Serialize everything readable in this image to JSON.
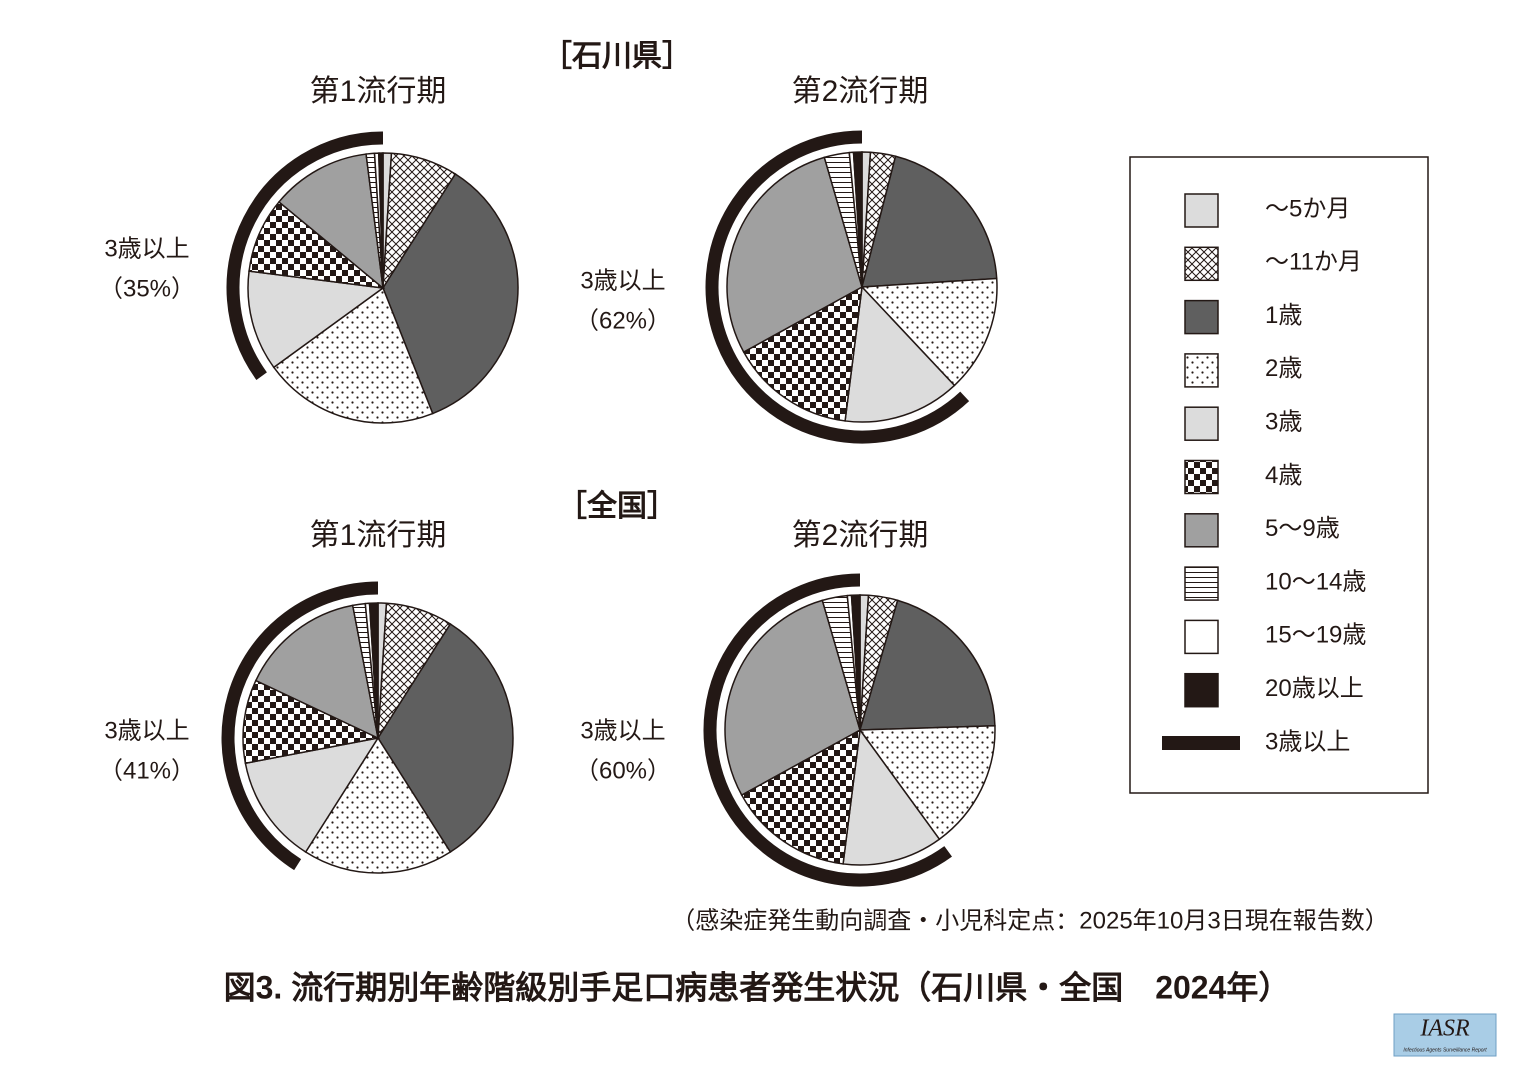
{
  "figure_title": "図3. 流行期別年齢階級別手足口病患者発生状況（石川県・全国　2024年）",
  "source": "（感染症発生動向調査・小児科定点：2025年10月3日現在報告数）",
  "logo": {
    "title": "IASR",
    "subtitle": "Infectious Agents Surveillance Report"
  },
  "chart_data": [
    {
      "type": "pie",
      "group": "［石川県］",
      "title": "第1流行期",
      "categories": [
        "～5か月",
        "～11か月",
        "1歳",
        "2歳",
        "3歳",
        "4歳",
        "5～9歳",
        "10～14歳",
        "15～19歳",
        "20歳以上"
      ],
      "values": [
        1,
        8,
        35,
        21,
        12,
        9,
        12,
        1,
        0.5,
        0.5
      ],
      "fills": [
        "#dcdcdc",
        "crosshatch",
        "#5f5f5f",
        "dots",
        "#dcdcdc",
        "checker",
        "#a0a0a0",
        "hstripes",
        "#ffffff",
        "#231815"
      ],
      "bracket": {
        "label": "3歳以上",
        "value": 35,
        "value_label": "（35%）",
        "color": "#231815"
      }
    },
    {
      "type": "pie",
      "title": "第2流行期",
      "categories": [
        "～5か月",
        "～11か月",
        "1歳",
        "2歳",
        "3歳",
        "4歳",
        "5～9歳",
        "10～14歳",
        "15～19歳",
        "20歳以上"
      ],
      "values": [
        1,
        3,
        20,
        14,
        14,
        15,
        28.5,
        3,
        0.5,
        1
      ],
      "fills": [
        "#dcdcdc",
        "crosshatch",
        "#5f5f5f",
        "dots",
        "#dcdcdc",
        "checker",
        "#a0a0a0",
        "hstripes",
        "#ffffff",
        "#231815"
      ],
      "bracket": {
        "label": "3歳以上",
        "value": 62,
        "value_label": "（62%）",
        "color": "#231815"
      }
    },
    {
      "type": "pie",
      "group": "［全国］",
      "title": "第1流行期",
      "categories": [
        "～5か月",
        "～11か月",
        "1歳",
        "2歳",
        "3歳",
        "4歳",
        "5～9歳",
        "10～14歳",
        "15～19歳",
        "20歳以上"
      ],
      "values": [
        1,
        8,
        32,
        18,
        13,
        10,
        15,
        1.5,
        0.5,
        1
      ],
      "fills": [
        "#dcdcdc",
        "crosshatch",
        "#5f5f5f",
        "dots",
        "#dcdcdc",
        "checker",
        "#a0a0a0",
        "hstripes",
        "#ffffff",
        "#231815"
      ],
      "bracket": {
        "label": "3歳以上",
        "value": 41,
        "value_label": "（41%）",
        "color": "#231815"
      }
    },
    {
      "type": "pie",
      "title": "第2流行期",
      "categories": [
        "～5か月",
        "～11か月",
        "1歳",
        "2歳",
        "3歳",
        "4歳",
        "5～9歳",
        "10～14歳",
        "15～19歳",
        "20歳以上"
      ],
      "values": [
        1,
        3.5,
        20,
        15.5,
        12,
        15,
        28.5,
        3,
        0.5,
        1
      ],
      "fills": [
        "#dcdcdc",
        "crosshatch",
        "#5f5f5f",
        "dots",
        "#dcdcdc",
        "checker",
        "#a0a0a0",
        "hstripes",
        "#ffffff",
        "#231815"
      ],
      "bracket": {
        "label": "3歳以上",
        "value": 60,
        "value_label": "（60%）",
        "color": "#231815"
      }
    }
  ]
}
